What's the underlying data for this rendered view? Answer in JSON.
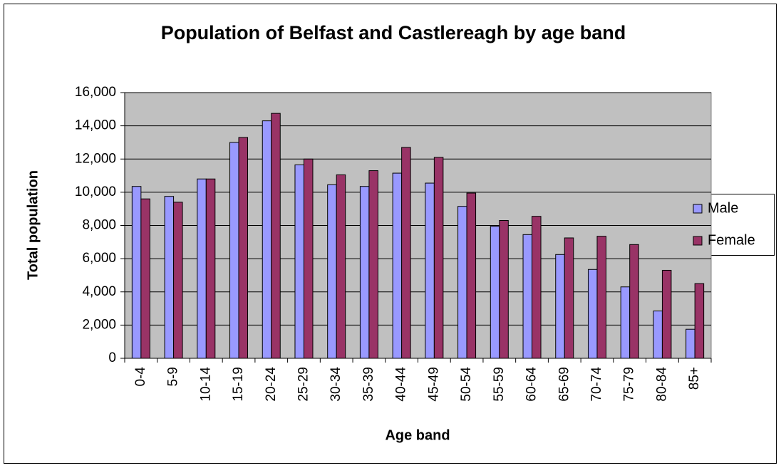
{
  "chart_data": {
    "type": "bar",
    "title": "Population of Belfast and Castlereagh by age band",
    "x_label": "Age band",
    "y_label": "Total population",
    "categories": [
      "0-4",
      "5-9",
      "10-14",
      "15-19",
      "20-24",
      "25-29",
      "30-34",
      "35-39",
      "40-44",
      "45-49",
      "50-54",
      "55-59",
      "60-64",
      "65-69",
      "70-74",
      "75-79",
      "80-84",
      "85+"
    ],
    "series": [
      {
        "name": "Male",
        "color": "#9999ff",
        "values": [
          10350,
          9750,
          10800,
          13000,
          14300,
          11650,
          10450,
          10350,
          11150,
          10550,
          9150,
          7950,
          7450,
          6250,
          5350,
          4300,
          2850,
          1750
        ]
      },
      {
        "name": "Female",
        "color": "#993366",
        "values": [
          9600,
          9400,
          10800,
          13300,
          14750,
          12000,
          11050,
          11300,
          12700,
          12100,
          9950,
          8300,
          8550,
          7250,
          7350,
          6850,
          5300,
          4500
        ]
      }
    ],
    "ylim": [
      0,
      16000
    ],
    "yticks": [
      0,
      {
        "value": 2000,
        "label": "2,000"
      },
      {
        "value": 4000,
        "label": "4,000"
      },
      {
        "value": 6000,
        "label": "6,000"
      },
      {
        "value": 8000,
        "label": "8,000"
      },
      {
        "value": 10000,
        "label": "10,000"
      },
      {
        "value": 12000,
        "label": "12,000"
      },
      {
        "value": 14000,
        "label": "14,000"
      },
      {
        "value": 16000,
        "label": "16,000"
      }
    ],
    "grid": true,
    "legend": "right",
    "plot_background": "#c0c0c0"
  }
}
